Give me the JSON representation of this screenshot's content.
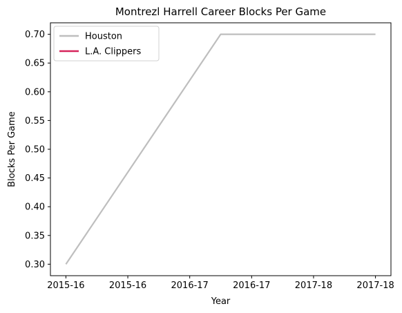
{
  "chart_data": {
    "type": "line",
    "title": "Montrezl Harrell Career Blocks Per Game",
    "xlabel": "Year",
    "ylabel": "Blocks Per Game",
    "ylim": [
      0.28,
      0.72
    ],
    "xlim": [
      -0.1,
      2.1
    ],
    "x_ticks": [
      {
        "pos": 0.0,
        "label": "2015-16"
      },
      {
        "pos": 0.4,
        "label": "2015-16"
      },
      {
        "pos": 0.8,
        "label": "2016-17"
      },
      {
        "pos": 1.2,
        "label": "2016-17"
      },
      {
        "pos": 1.6,
        "label": "2017-18"
      },
      {
        "pos": 2.0,
        "label": "2017-18"
      }
    ],
    "y_ticks": [
      0.3,
      0.35,
      0.4,
      0.45,
      0.5,
      0.55,
      0.6,
      0.65,
      0.7
    ],
    "series": [
      {
        "name": "Houston",
        "color": "#bebebe",
        "x": [
          0,
          1,
          2
        ],
        "values": [
          0.3,
          0.7,
          0.7
        ]
      },
      {
        "name": "L.A. Clippers",
        "color": "#d6245a",
        "x": [],
        "values": []
      }
    ],
    "legend": "top-left",
    "grid": false
  }
}
